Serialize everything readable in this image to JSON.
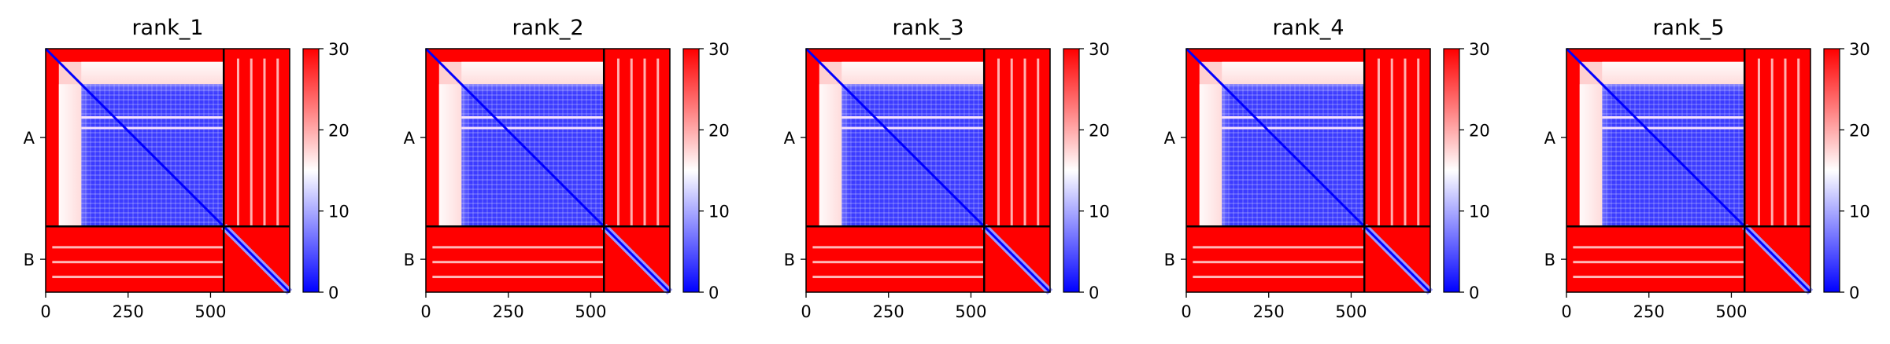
{
  "colors": {
    "low": "#0000ff",
    "mid": "#ffffff",
    "high": "#ff0000",
    "chain_divider": "#000000",
    "frame": "#000000"
  },
  "chart_data": [
    {
      "type": "heatmap",
      "title": "rank_1",
      "x_ticks": [
        "0",
        "250",
        "500"
      ],
      "y_ticks": [
        "A",
        "B"
      ],
      "xlim": [
        0,
        740
      ],
      "ylim": [
        740,
        0
      ],
      "chains": [
        {
          "name": "A",
          "start": 0,
          "end": 540
        },
        {
          "name": "B",
          "start": 540,
          "end": 740
        }
      ],
      "colorbar": {
        "min": 0,
        "max": 30,
        "ticks": [
          "0",
          "10",
          "20",
          "30"
        ],
        "colormap": "bwr"
      },
      "colorbar_range": [
        0,
        30
      ]
    },
    {
      "type": "heatmap",
      "title": "rank_2",
      "x_ticks": [
        "0",
        "250",
        "500"
      ],
      "y_ticks": [
        "A",
        "B"
      ],
      "xlim": [
        0,
        740
      ],
      "ylim": [
        740,
        0
      ],
      "chains": [
        {
          "name": "A",
          "start": 0,
          "end": 540
        },
        {
          "name": "B",
          "start": 540,
          "end": 740
        }
      ],
      "colorbar": {
        "min": 0,
        "max": 30,
        "ticks": [
          "0",
          "10",
          "20",
          "30"
        ],
        "colormap": "bwr"
      },
      "colorbar_range": [
        0,
        30
      ]
    },
    {
      "type": "heatmap",
      "title": "rank_3",
      "x_ticks": [
        "0",
        "250",
        "500"
      ],
      "y_ticks": [
        "A",
        "B"
      ],
      "xlim": [
        0,
        740
      ],
      "ylim": [
        740,
        0
      ],
      "chains": [
        {
          "name": "A",
          "start": 0,
          "end": 540
        },
        {
          "name": "B",
          "start": 540,
          "end": 740
        }
      ],
      "colorbar": {
        "min": 0,
        "max": 30,
        "ticks": [
          "0",
          "10",
          "20",
          "30"
        ],
        "colormap": "bwr"
      },
      "colorbar_range": [
        0,
        30
      ]
    },
    {
      "type": "heatmap",
      "title": "rank_4",
      "x_ticks": [
        "0",
        "250",
        "500"
      ],
      "y_ticks": [
        "A",
        "B"
      ],
      "xlim": [
        0,
        740
      ],
      "ylim": [
        740,
        0
      ],
      "chains": [
        {
          "name": "A",
          "start": 0,
          "end": 540
        },
        {
          "name": "B",
          "start": 540,
          "end": 740
        }
      ],
      "colorbar": {
        "min": 0,
        "max": 30,
        "ticks": [
          "0",
          "10",
          "20",
          "30"
        ],
        "colormap": "bwr"
      },
      "colorbar_range": [
        0,
        30
      ]
    },
    {
      "type": "heatmap",
      "title": "rank_5",
      "x_ticks": [
        "0",
        "250",
        "500"
      ],
      "y_ticks": [
        "A",
        "B"
      ],
      "xlim": [
        0,
        740
      ],
      "ylim": [
        740,
        0
      ],
      "chains": [
        {
          "name": "A",
          "start": 0,
          "end": 540
        },
        {
          "name": "B",
          "start": 540,
          "end": 740
        }
      ],
      "colorbar": {
        "min": 0,
        "max": 30,
        "ticks": [
          "0",
          "10",
          "20",
          "30"
        ],
        "colormap": "bwr"
      },
      "colorbar_range": [
        0,
        30
      ]
    }
  ]
}
